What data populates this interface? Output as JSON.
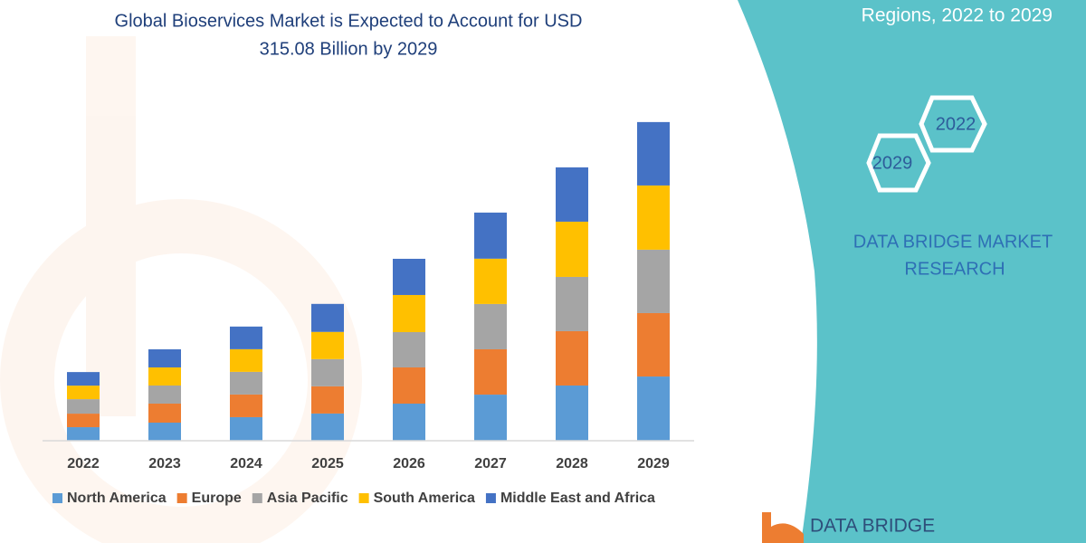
{
  "chart_data": {
    "type": "stacked_bar",
    "title": [
      "Global Bioservices Market is Expected to Account for USD",
      "315.08 Billion by 2029"
    ],
    "categories": [
      "2022",
      "2023",
      "2024",
      "2025",
      "2026",
      "2027",
      "2028",
      "2029"
    ],
    "series": [
      {
        "name": "North America",
        "color": "#5b9bd5",
        "values": [
          13.4,
          17.9,
          23.3,
          26.9,
          36.7,
          45.6,
          54.6,
          63.5
        ]
      },
      {
        "name": "Europe",
        "color": "#ed7d31",
        "values": [
          13.4,
          18.8,
          22.4,
          26.9,
          35.8,
          44.8,
          53.7,
          62.7
        ]
      },
      {
        "name": "Asia Pacific",
        "color": "#a5a5a5",
        "values": [
          14.3,
          17.9,
          22.4,
          26.9,
          34.9,
          44.8,
          53.7,
          62.7
        ]
      },
      {
        "name": "South America",
        "color": "#ffc000",
        "values": [
          13.4,
          17.9,
          22.4,
          26.9,
          36.7,
          44.8,
          54.6,
          63.5
        ]
      },
      {
        "name": "Middle East and Africa",
        "color": "#4472c4",
        "values": [
          13.4,
          17.9,
          22.4,
          27.7,
          35.8,
          45.6,
          53.7,
          62.7
        ]
      }
    ],
    "ylim": [
      0,
      400
    ],
    "legend": "bottom"
  },
  "side_panel": {
    "subtitle": "Regions, 2022 to 2029",
    "hexagons": [
      "2022",
      "2029"
    ],
    "brand": [
      "DATA BRIDGE MARKET",
      "RESEARCH"
    ],
    "logo": "DATA BRIDGE"
  }
}
